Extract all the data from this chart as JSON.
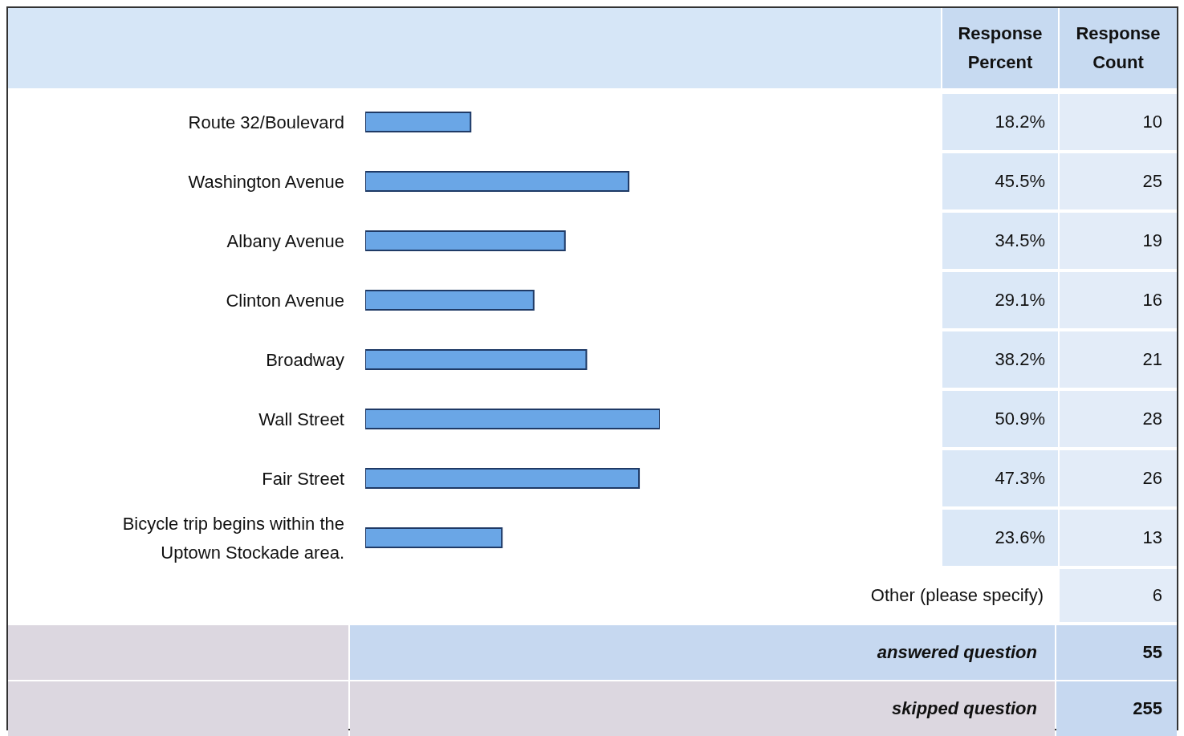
{
  "chart_data": {
    "type": "bar",
    "orientation": "horizontal",
    "categories": [
      "Route 32/Boulevard",
      "Washington Avenue",
      "Albany Avenue",
      "Clinton Avenue",
      "Broadway",
      "Wall Street",
      "Fair Street",
      "Bicycle trip begins within the Uptown Stockade area."
    ],
    "values": [
      18.2,
      45.5,
      34.5,
      29.1,
      38.2,
      50.9,
      47.3,
      23.6
    ],
    "value_labels": [
      "18.2%",
      "45.5%",
      "34.5%",
      "29.1%",
      "38.2%",
      "50.9%",
      "47.3%",
      "23.6%"
    ],
    "color": "#6aa6e6",
    "tick_labels": "y",
    "annotations": [
      "Response Percent",
      "Response Count",
      "10",
      "25",
      "19",
      "16",
      "21",
      "28",
      "26",
      "13",
      "Other (please specify)",
      "6",
      "answered question",
      "55",
      "skipped question",
      "255"
    ]
  }
}
